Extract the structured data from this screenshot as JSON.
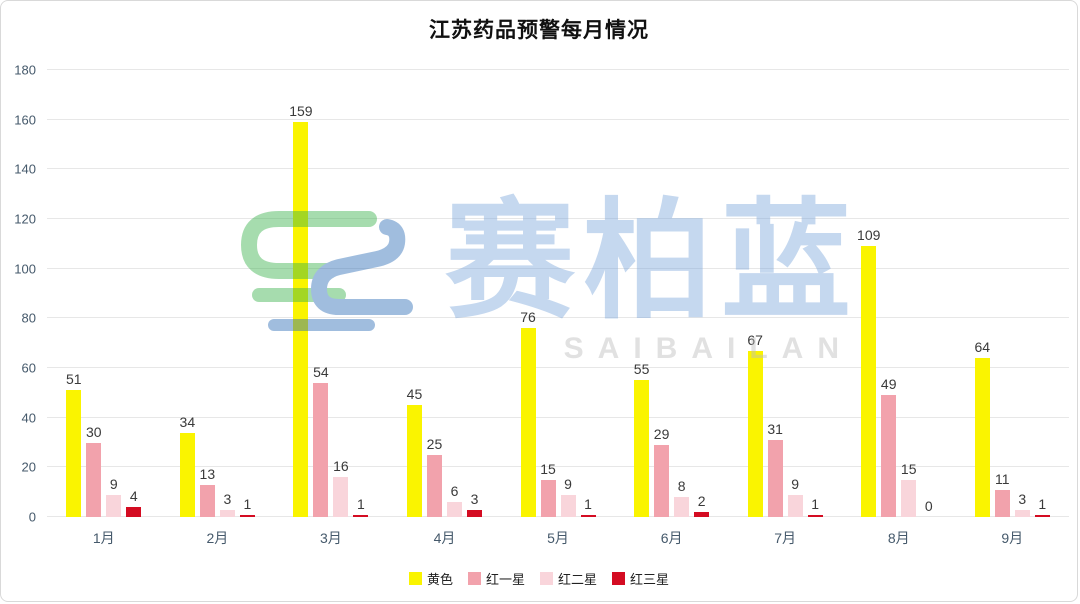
{
  "chart_data": {
    "type": "bar",
    "title": "江苏药品预警每月情况",
    "categories": [
      "1月",
      "2月",
      "3月",
      "4月",
      "5月",
      "6月",
      "7月",
      "8月",
      "9月"
    ],
    "series": [
      {
        "name": "黄色",
        "color": "#FAF400",
        "values": [
          51,
          34,
          159,
          45,
          76,
          55,
          67,
          109,
          64
        ]
      },
      {
        "name": "红一星",
        "color": "#F2A2AC",
        "values": [
          30,
          13,
          54,
          25,
          15,
          29,
          31,
          49,
          11
        ]
      },
      {
        "name": "红二星",
        "color": "#F9D5DB",
        "values": [
          9,
          3,
          16,
          6,
          9,
          8,
          9,
          15,
          3
        ]
      },
      {
        "name": "红三星",
        "color": "#D40C22",
        "values": [
          4,
          1,
          1,
          3,
          1,
          2,
          1,
          0,
          1
        ]
      }
    ],
    "xlabel": "",
    "ylabel": "",
    "ylim": [
      0,
      180
    ],
    "ytick_interval": 20,
    "grid": true,
    "legend_position": "bottom"
  },
  "watermark": {
    "text": "赛柏蓝",
    "subtext": "SAIBAILAN"
  },
  "colors": {
    "axis_text": "#45596B",
    "grid": "#E7E7E7",
    "value_label": "#3A3A3A",
    "watermark_blue": "#7FA9DC",
    "watermark_green": "#3BB34E",
    "watermark_gray": "#BDBDBD",
    "background": "#FFFFFF",
    "border": "#D9D9D9"
  }
}
